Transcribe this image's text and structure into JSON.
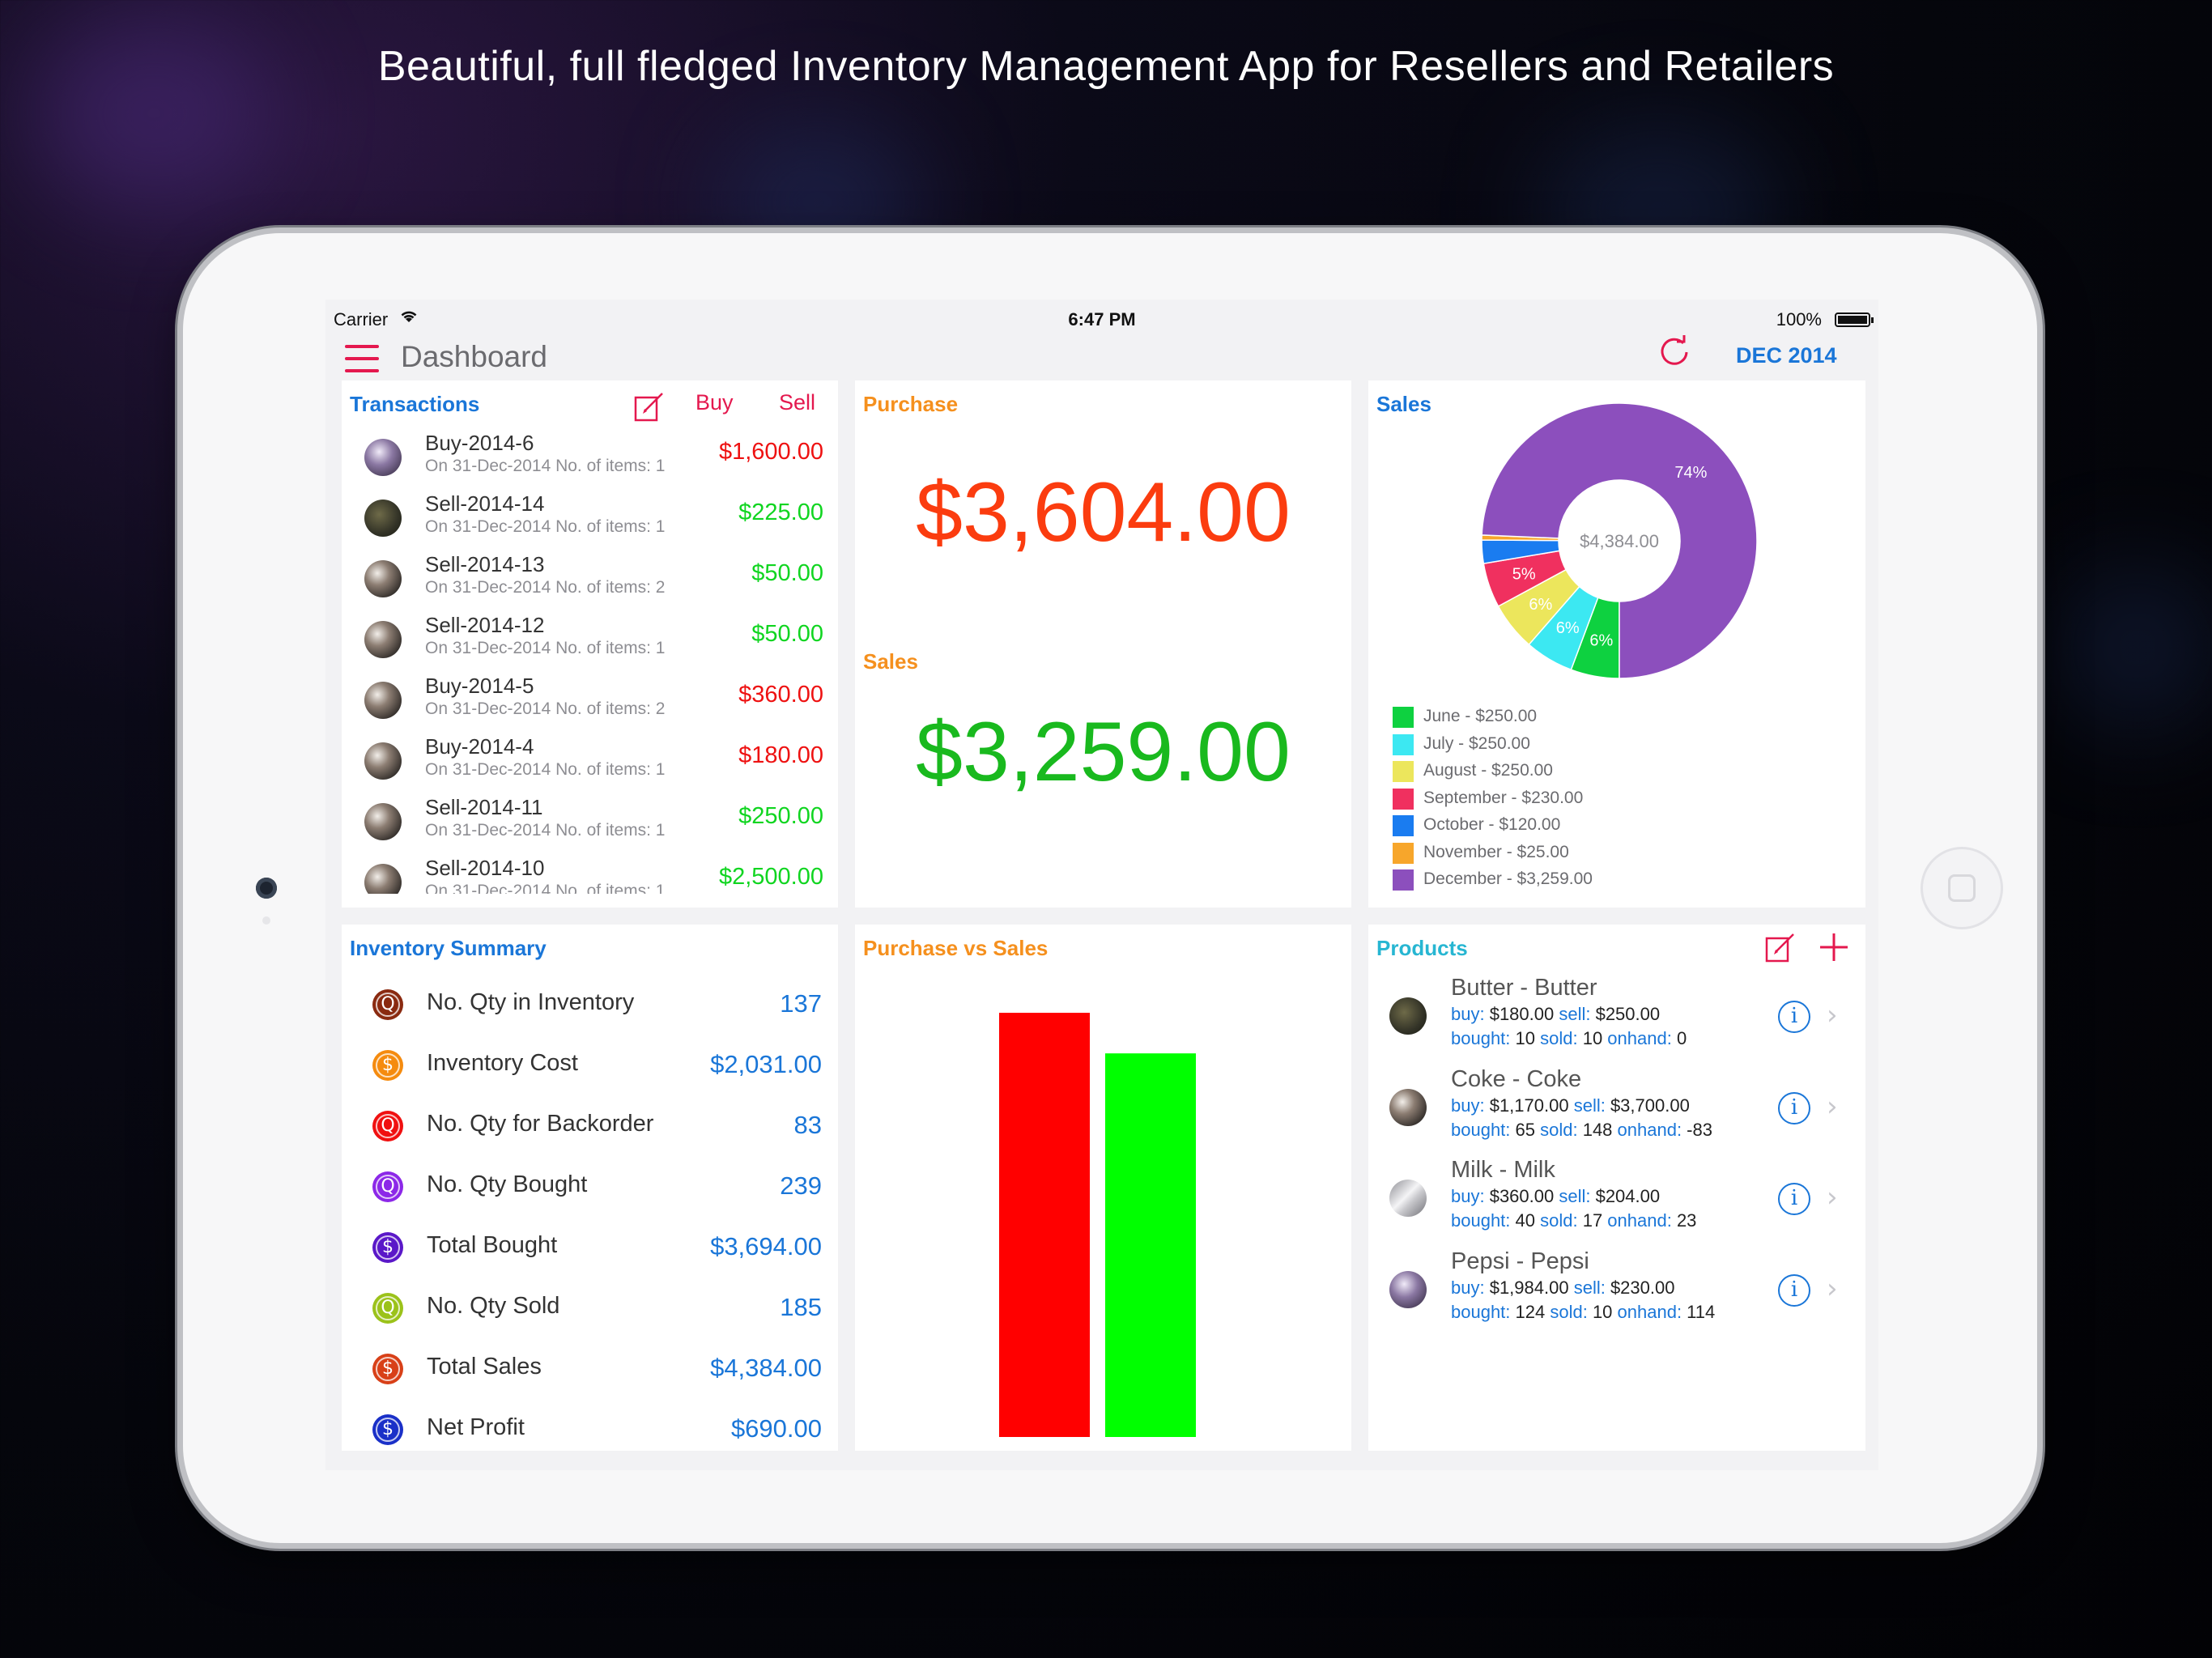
{
  "headline": "Beautiful, full fledged Inventory Management App for Resellers and Retailers",
  "status_bar": {
    "carrier": "Carrier",
    "time": "6:47 PM",
    "battery": "100%"
  },
  "nav": {
    "title": "Dashboard",
    "date": "DEC 2014"
  },
  "transactions": {
    "title": "Transactions",
    "buy_label": "Buy",
    "sell_label": "Sell",
    "items": [
      {
        "name": "Buy-2014-6",
        "sub": "On 31-Dec-2014  No. of items: 1",
        "amount": "$1,600.00",
        "kind": "buy"
      },
      {
        "name": "Sell-2014-14",
        "sub": "On 31-Dec-2014  No. of items: 1",
        "amount": "$225.00",
        "kind": "sell"
      },
      {
        "name": "Sell-2014-13",
        "sub": "On 31-Dec-2014  No. of items: 2",
        "amount": "$50.00",
        "kind": "sell"
      },
      {
        "name": "Sell-2014-12",
        "sub": "On 31-Dec-2014  No. of items: 1",
        "amount": "$50.00",
        "kind": "sell"
      },
      {
        "name": "Buy-2014-5",
        "sub": "On 31-Dec-2014  No. of items: 2",
        "amount": "$360.00",
        "kind": "buy"
      },
      {
        "name": "Buy-2014-4",
        "sub": "On 31-Dec-2014  No. of items: 1",
        "amount": "$180.00",
        "kind": "buy"
      },
      {
        "name": "Sell-2014-11",
        "sub": "On 31-Dec-2014  No. of items: 1",
        "amount": "$250.00",
        "kind": "sell"
      },
      {
        "name": "Sell-2014-10",
        "sub": "On 31-Dec-2014  No. of items: 1",
        "amount": "$2,500.00",
        "kind": "sell"
      }
    ]
  },
  "purchase_sales": {
    "purchase_title": "Purchase",
    "purchase_amount": "$3,604.00",
    "sales_title": "Sales",
    "sales_amount": "$3,259.00"
  },
  "sales_chart": {
    "title": "Sales",
    "center_label": "$4,384.00",
    "colors": {
      "June": "#0ed140",
      "July": "#3ce8f2",
      "August": "#ece65c",
      "September": "#f0305f",
      "October": "#1a7cf0",
      "November": "#f7a62b",
      "December": "#8c4fbd"
    }
  },
  "chart_data": [
    {
      "type": "pie",
      "title": "Sales",
      "center_label": "$4,384.00",
      "categories": [
        "June",
        "July",
        "August",
        "September",
        "October",
        "November",
        "December"
      ],
      "values": [
        250,
        250,
        250,
        230,
        120,
        25,
        3259
      ],
      "legend": [
        "June - $250.00",
        "July - $250.00",
        "August - $250.00",
        "September - $230.00",
        "October - $120.00",
        "November - $25.00",
        "December - $3,259.00"
      ],
      "slice_labels": [
        "6%",
        "6%",
        "6%",
        "5%",
        "",
        "",
        "74%"
      ]
    },
    {
      "type": "bar",
      "title": "Purchase vs Sales",
      "categories": [
        "",
        ""
      ],
      "values": [
        3604,
        3259
      ],
      "colors": [
        "#ff0000",
        "#00ff00"
      ]
    }
  ],
  "inventory": {
    "title": "Inventory Summary",
    "items": [
      {
        "icon": "Q",
        "label": "No. Qty in Inventory",
        "value": "137",
        "color": "#8a2a10"
      },
      {
        "icon": "$",
        "label": "Inventory Cost",
        "value": "$2,031.00",
        "color": "#f58b0f"
      },
      {
        "icon": "Q",
        "label": "No. Qty for Backorder",
        "value": "83",
        "color": "#f01010"
      },
      {
        "icon": "Q",
        "label": "No. Qty Bought",
        "value": "239",
        "color": "#8c28e8"
      },
      {
        "icon": "$",
        "label": "Total Bought",
        "value": "$3,694.00",
        "color": "#5a18c8"
      },
      {
        "icon": "Q",
        "label": "No. Qty Sold",
        "value": "185",
        "color": "#9bc21a"
      },
      {
        "icon": "$",
        "label": "Total Sales",
        "value": "$4,384.00",
        "color": "#d84018"
      },
      {
        "icon": "$",
        "label": "Net Profit",
        "value": "$690.00",
        "color": "#1a30c8"
      }
    ]
  },
  "pvs": {
    "title": "Purchase vs Sales"
  },
  "products": {
    "title": "Products",
    "items": [
      {
        "name": "Butter - Butter",
        "buy": "$180.00",
        "sell": "$250.00",
        "bought": "10",
        "sold": "10",
        "onhand": "0",
        "img": "butter"
      },
      {
        "name": "Coke - Coke",
        "buy": "$1,170.00",
        "sell": "$3,700.00",
        "bought": "65",
        "sold": "148",
        "onhand": "-83",
        "img": "coke"
      },
      {
        "name": "Milk - Milk",
        "buy": "$360.00",
        "sell": "$204.00",
        "bought": "40",
        "sold": "17",
        "onhand": "23",
        "img": "milk"
      },
      {
        "name": "Pepsi - Pepsi",
        "buy": "$1,984.00",
        "sell": "$230.00",
        "bought": "124",
        "sold": "10",
        "onhand": "114",
        "img": "pepsi"
      }
    ],
    "keys": {
      "buy": "buy:",
      "sell": "sell:",
      "bought": "bought:",
      "sold": "sold:",
      "onhand": "onhand:"
    }
  }
}
